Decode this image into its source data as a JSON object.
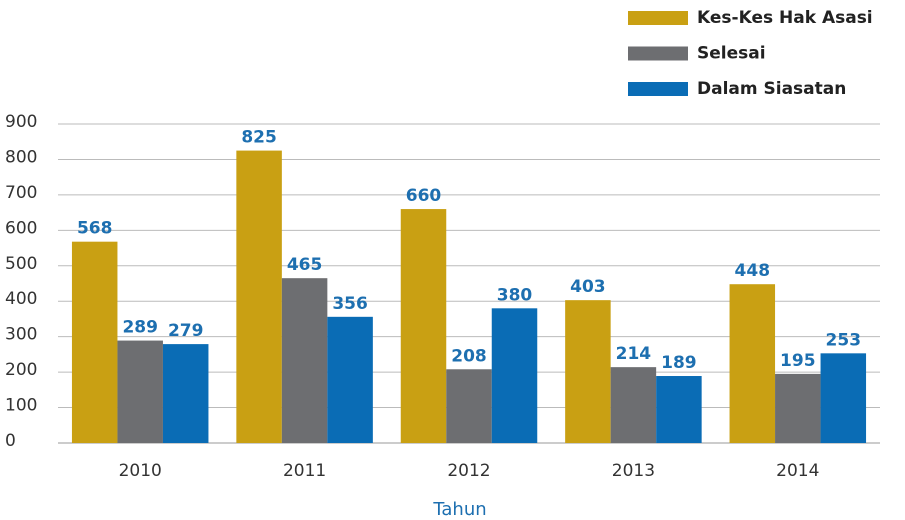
{
  "chart_data": {
    "type": "bar",
    "categories": [
      "2010",
      "2011",
      "2012",
      "2013",
      "2014"
    ],
    "series": [
      {
        "name": "Kes-Kes Hak Asasi",
        "color": "#c9a013",
        "values": [
          568,
          825,
          660,
          403,
          448
        ]
      },
      {
        "name": "Selesai",
        "color": "#6d6e71",
        "values": [
          289,
          465,
          208,
          214,
          195
        ]
      },
      {
        "name": "Dalam Siasatan",
        "color": "#0a6cb5",
        "values": [
          279,
          356,
          380,
          189,
          253
        ]
      }
    ],
    "x_label": "Tahun",
    "ylim": [
      0,
      900
    ],
    "yticks": [
      0,
      100,
      200,
      300,
      400,
      500,
      600,
      700,
      800,
      900
    ],
    "grid": true,
    "legend": "top-right"
  }
}
